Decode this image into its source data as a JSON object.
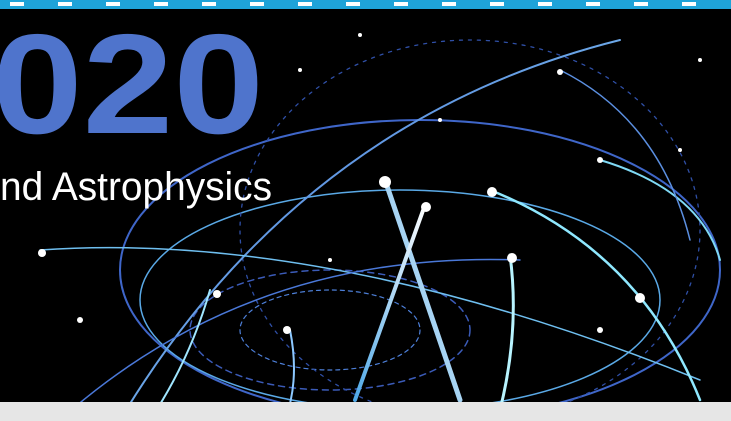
{
  "banner": {
    "title": "020",
    "subtitle": "nd Astrophysics"
  }
}
